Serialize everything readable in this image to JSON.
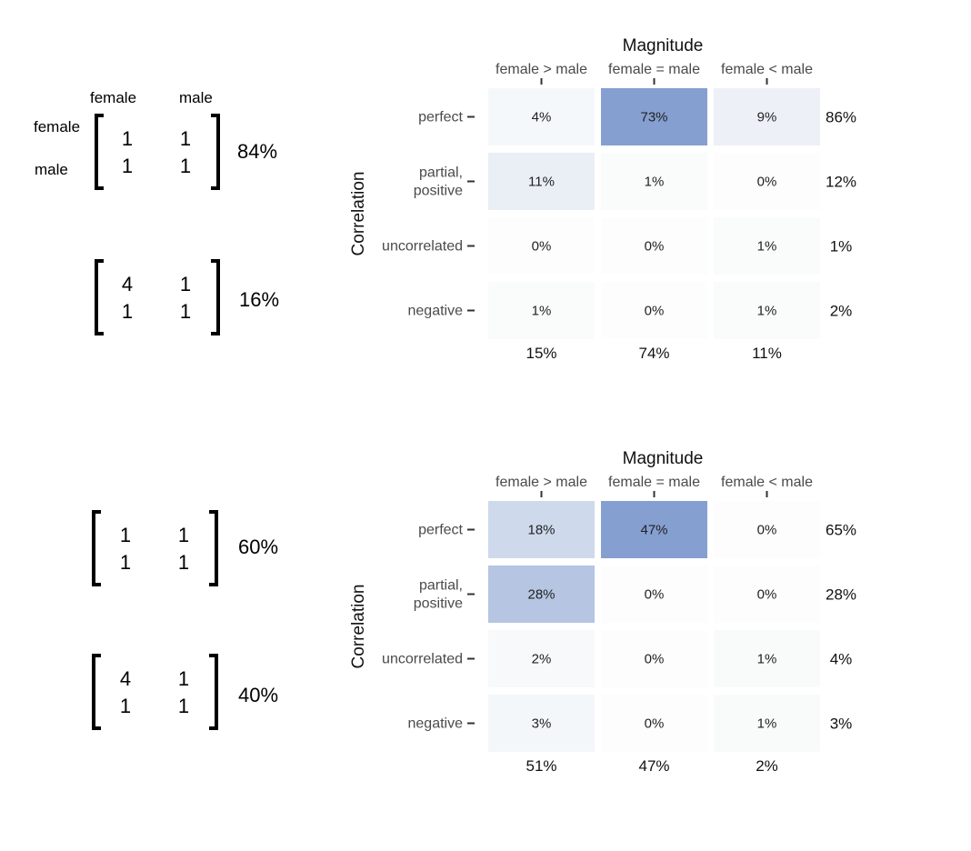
{
  "matrices": {
    "col_headers": [
      "female",
      "male"
    ],
    "row_headers": [
      "female",
      "male"
    ],
    "items": [
      {
        "cells": [
          "1",
          "1",
          "1",
          "1"
        ],
        "pct": "84%"
      },
      {
        "cells": [
          "4",
          "1",
          "1",
          "1"
        ],
        "pct": "16%"
      },
      {
        "cells": [
          "1",
          "1",
          "1",
          "1"
        ],
        "pct": "60%"
      },
      {
        "cells": [
          "4",
          "1",
          "1",
          "1"
        ],
        "pct": "40%"
      }
    ]
  },
  "chart_data": [
    {
      "type": "heatmap",
      "title": "Magnitude",
      "ylabel": "Correlation",
      "x_categories": [
        "female > male",
        "female = male",
        "female < male"
      ],
      "y_categories": [
        "perfect",
        "partial,\npositive",
        "uncorrelated",
        "negative"
      ],
      "values": [
        [
          4,
          73,
          9
        ],
        [
          11,
          1,
          0
        ],
        [
          0,
          0,
          1
        ],
        [
          1,
          0,
          1
        ]
      ],
      "row_totals": [
        86,
        12,
        1,
        2
      ],
      "col_totals": [
        15,
        74,
        11
      ],
      "unit": "%",
      "colors": {
        "low": "#fcfdfc",
        "high": "#859fd1"
      }
    },
    {
      "type": "heatmap",
      "title": "Magnitude",
      "ylabel": "Correlation",
      "x_categories": [
        "female > male",
        "female = male",
        "female < male"
      ],
      "y_categories": [
        "perfect",
        "partial,\npositive",
        "uncorrelated",
        "negative"
      ],
      "values": [
        [
          18,
          47,
          0
        ],
        [
          28,
          0,
          0
        ],
        [
          2,
          0,
          1
        ],
        [
          3,
          0,
          1
        ]
      ],
      "row_totals": [
        65,
        28,
        4,
        3
      ],
      "col_totals": [
        51,
        47,
        2
      ],
      "unit": "%",
      "colors": {
        "low": "#fcfdfc",
        "high": "#859fd1"
      }
    }
  ]
}
